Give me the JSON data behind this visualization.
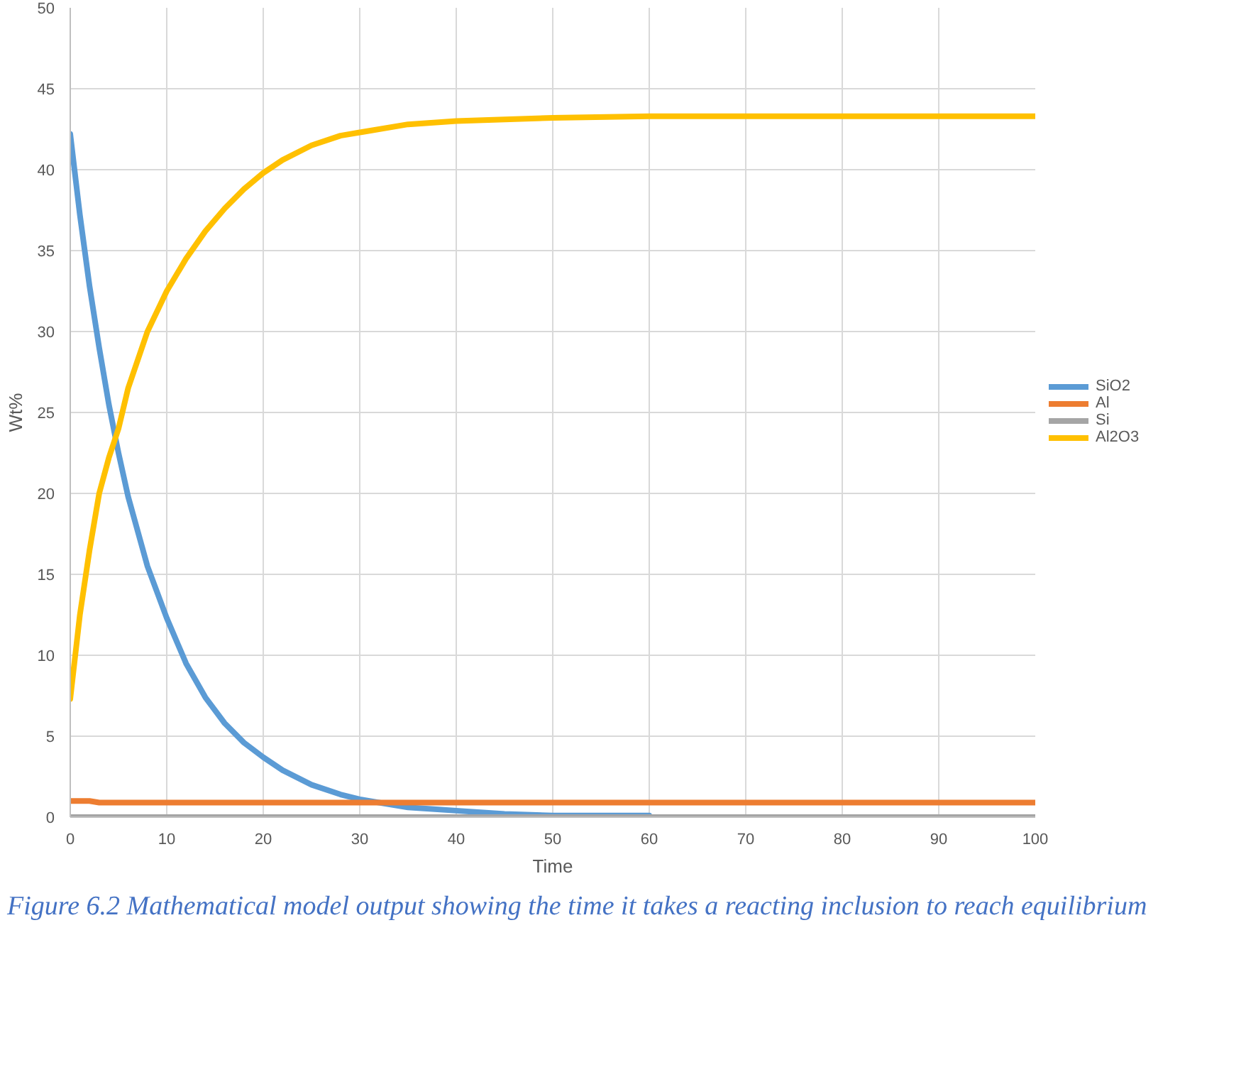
{
  "chart_data": {
    "type": "line",
    "xlabel": "Time",
    "ylabel": "Wt%",
    "x": [
      0,
      1,
      2,
      3,
      4,
      5,
      6,
      8,
      10,
      12,
      14,
      16,
      18,
      20,
      22,
      25,
      28,
      30,
      35,
      40,
      45,
      50,
      60,
      70,
      80,
      90,
      100
    ],
    "series": [
      {
        "name": "SiO2",
        "color": "#5b9bd5",
        "values": [
          42.2,
          37.2,
          32.8,
          29,
          25.5,
          22.5,
          19.8,
          15.5,
          12.3,
          9.5,
          7.4,
          5.8,
          4.6,
          3.7,
          2.9,
          2.0,
          1.4,
          1.1,
          0.6,
          0.4,
          0.2,
          0.1,
          0.1,
          null,
          null,
          null,
          null
        ]
      },
      {
        "name": "Al",
        "color": "#ed7d31",
        "values": [
          1.0,
          1.0,
          1.0,
          0.9,
          0.9,
          0.9,
          0.9,
          0.9,
          0.9,
          0.9,
          0.9,
          0.9,
          0.9,
          0.9,
          0.9,
          0.9,
          0.9,
          0.9,
          0.9,
          0.9,
          0.9,
          0.9,
          0.9,
          0.9,
          0.9,
          0.9,
          0.9
        ]
      },
      {
        "name": "Si",
        "color": "#a5a5a5",
        "values": [
          0,
          0,
          0,
          0,
          0,
          0,
          0,
          0,
          0,
          0,
          0,
          0,
          0,
          0,
          0,
          0,
          0,
          0,
          0,
          0,
          0,
          0,
          0,
          0,
          0,
          0,
          0
        ]
      },
      {
        "name": "Al2O3",
        "color": "#ffc000",
        "values": [
          7.3,
          12.5,
          16.5,
          20,
          22.2,
          24,
          26.5,
          30,
          32.5,
          34.5,
          36.2,
          37.6,
          38.8,
          39.8,
          40.6,
          41.5,
          42.1,
          42.3,
          42.8,
          43,
          43.1,
          43.2,
          43.3,
          43.3,
          43.3,
          43.3,
          43.3
        ]
      }
    ],
    "xlim": [
      0,
      100
    ],
    "xticks": [
      0,
      10,
      20,
      30,
      40,
      50,
      60,
      70,
      80,
      90,
      100
    ],
    "ylim": [
      0,
      50
    ],
    "yticks": [
      0,
      5,
      10,
      15,
      20,
      25,
      30,
      35,
      40,
      45,
      50
    ],
    "grid": true,
    "legend": "right",
    "marker": "none",
    "line_style": "solid",
    "annotations": [
      "Figure 6.2 Mathematical model output showing the time it takes a reacting inclusion to reach equilibrium"
    ]
  }
}
